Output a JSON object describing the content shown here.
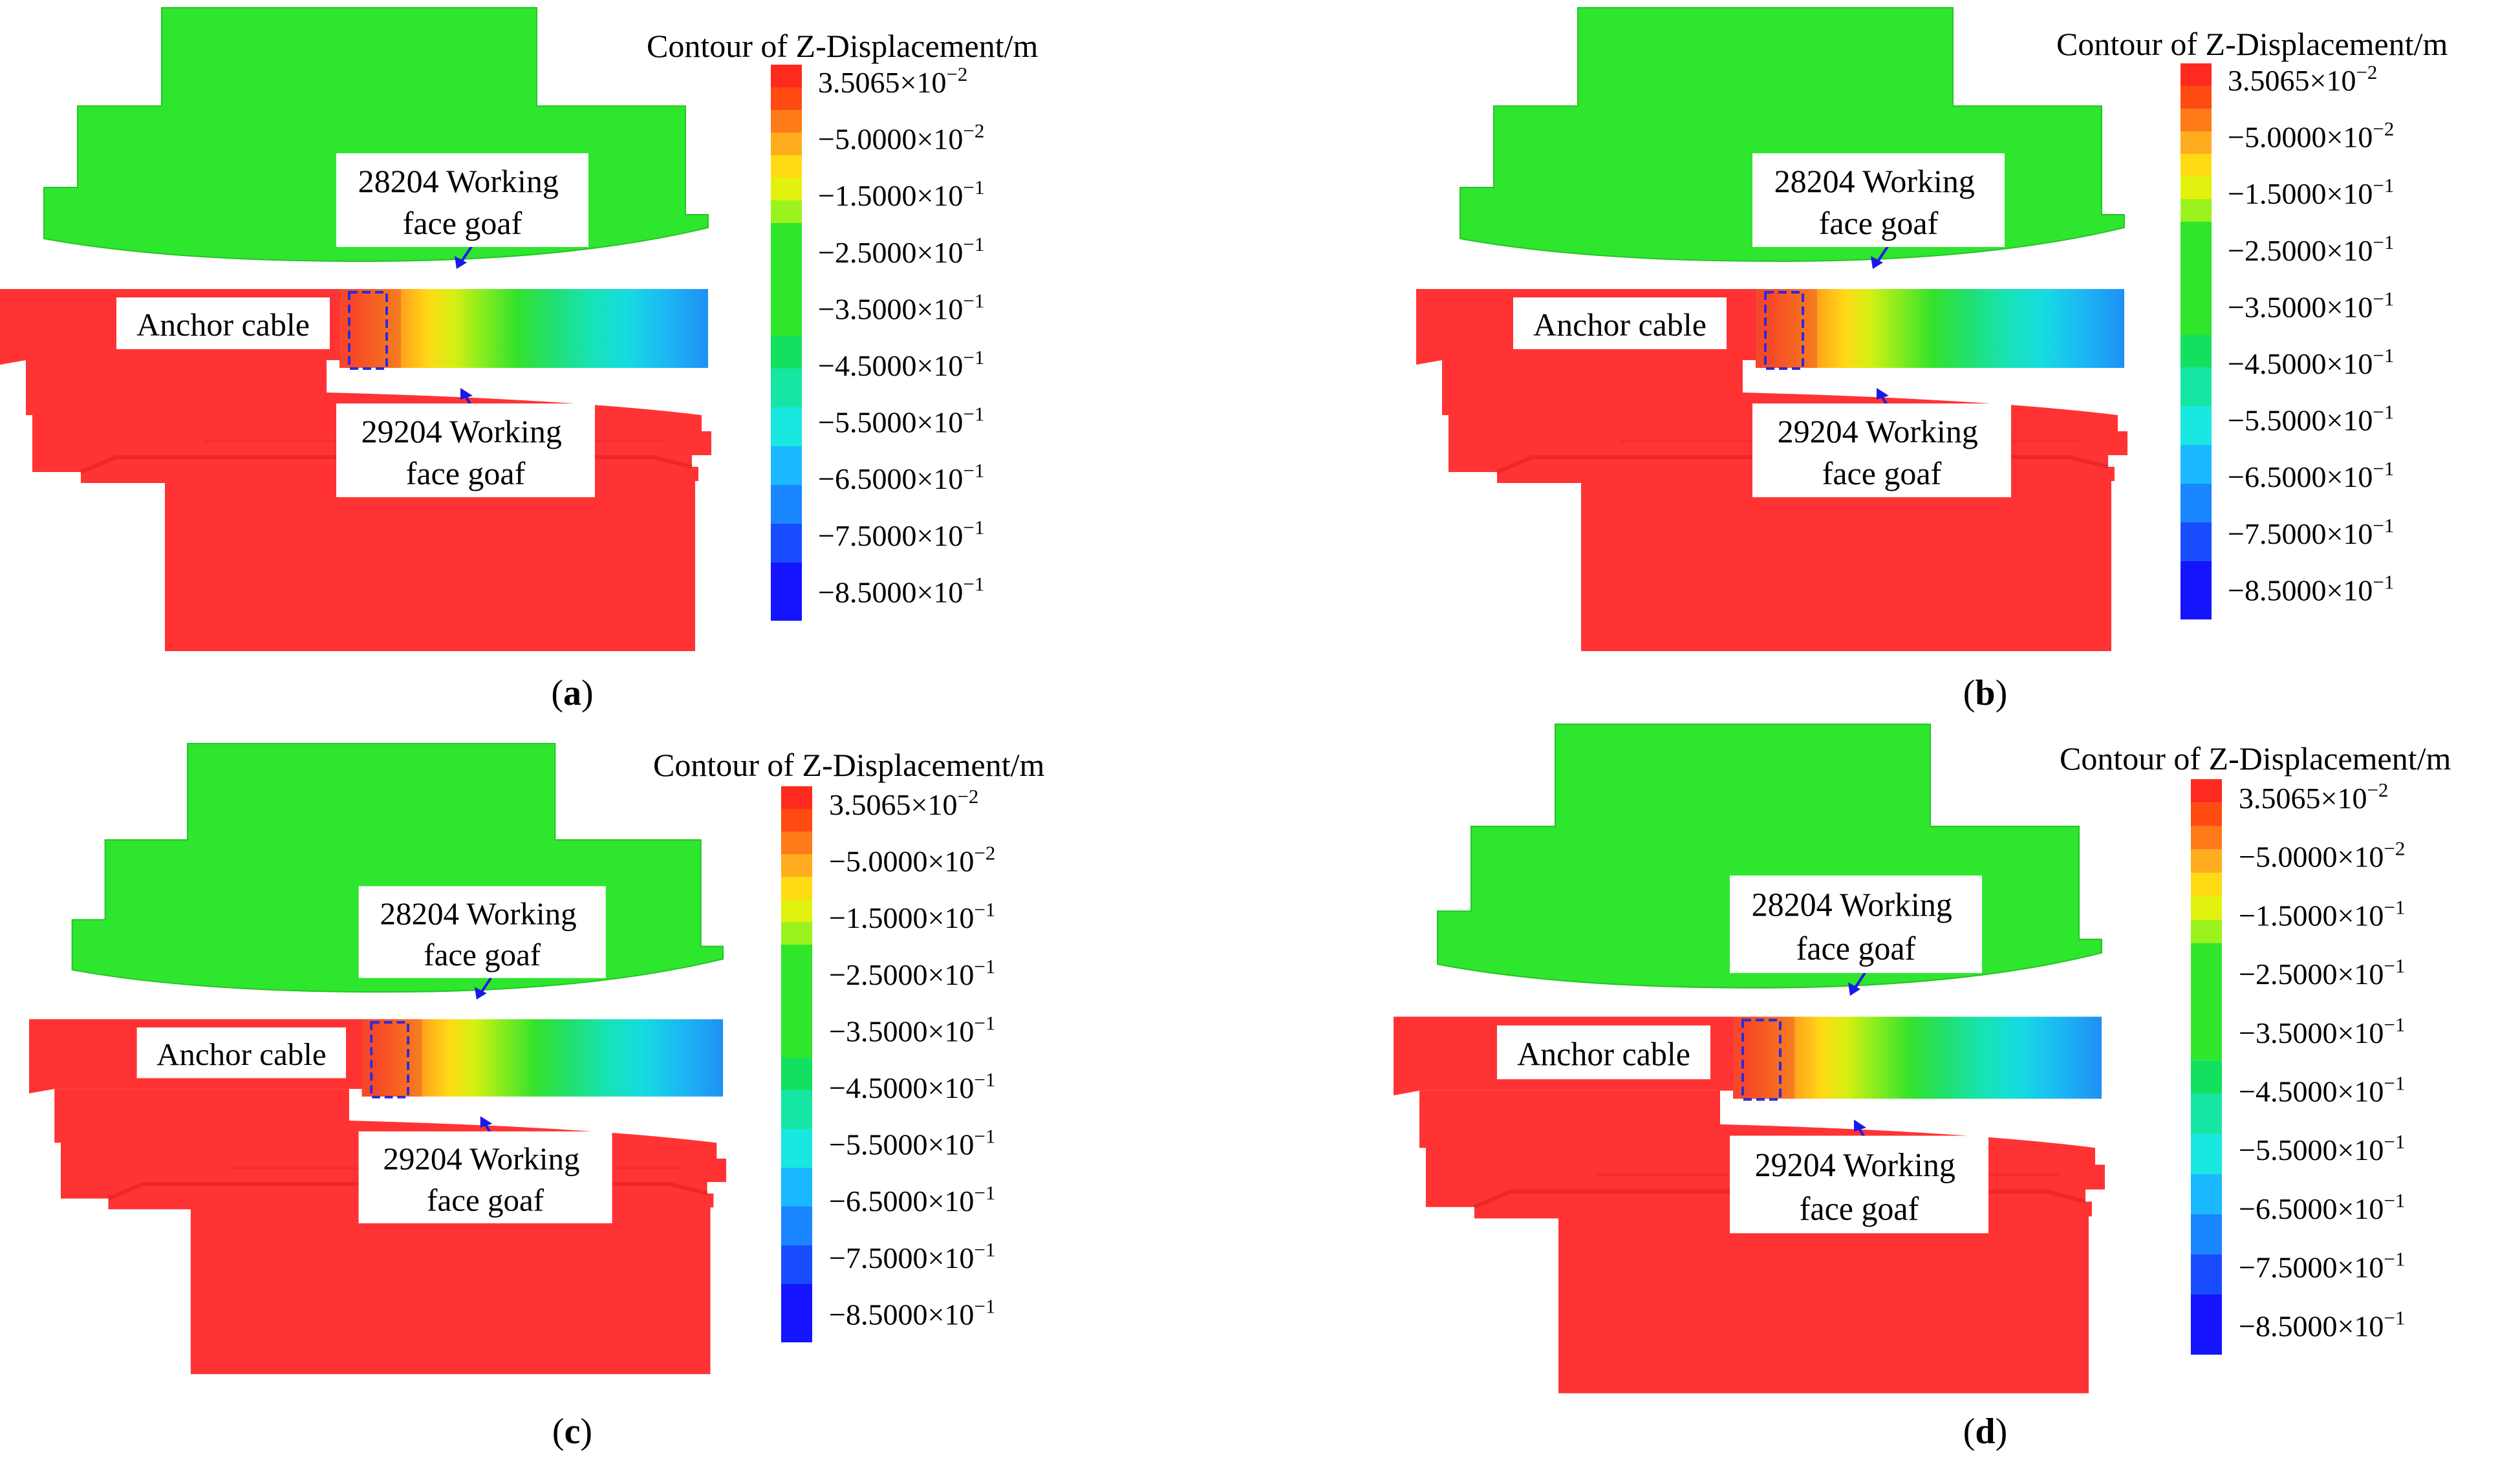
{
  "figure": {
    "colorbar": {
      "title": "Contour of Z-Displacement/m",
      "labels": [
        {
          "mantissa": "3.5065",
          "exponent": "−2"
        },
        {
          "mantissa": "−5.0000",
          "exponent": "−2"
        },
        {
          "mantissa": "−1.5000",
          "exponent": "−1"
        },
        {
          "mantissa": "−2.5000",
          "exponent": "−1"
        },
        {
          "mantissa": "−3.5000",
          "exponent": "−1"
        },
        {
          "mantissa": "−4.5000",
          "exponent": "−1"
        },
        {
          "mantissa": "−5.5000",
          "exponent": "−1"
        },
        {
          "mantissa": "−6.5000",
          "exponent": "−1"
        },
        {
          "mantissa": "−7.5000",
          "exponent": "−1"
        },
        {
          "mantissa": "−8.5000",
          "exponent": "−1"
        }
      ],
      "band_colors": [
        "#ff2a1f",
        "#ff4a12",
        "#ff7a18",
        "#ffac1e",
        "#ffdb14",
        "#e2f20f",
        "#9cf21c",
        "#30e62a",
        "#14e060",
        "#16e6a4",
        "#18e8e0",
        "#1ab8ff",
        "#1a86ff",
        "#1a4cff",
        "#1414ff"
      ],
      "multiply_sign": "×",
      "base": "10"
    },
    "callouts": {
      "upper_goaf": [
        "28204 Working",
        "face goaf"
      ],
      "lower_goaf": [
        "29204 Working",
        "face goaf"
      ],
      "anchor": "Anchor cable"
    },
    "zone_colors": {
      "upper": "#2ee62e",
      "lower": "#ff3333",
      "arrow": "#1a1ae6",
      "dash": "#2a2ae0"
    },
    "panels": [
      {
        "id": "a",
        "paren_open": "(",
        "letter": "a",
        "paren_close": ")"
      },
      {
        "id": "b",
        "paren_open": "(",
        "letter": "b",
        "paren_close": ")"
      },
      {
        "id": "c",
        "paren_open": "(",
        "letter": "c",
        "paren_close": ")"
      },
      {
        "id": "d",
        "paren_open": "(",
        "letter": "d",
        "paren_close": ")"
      }
    ]
  }
}
